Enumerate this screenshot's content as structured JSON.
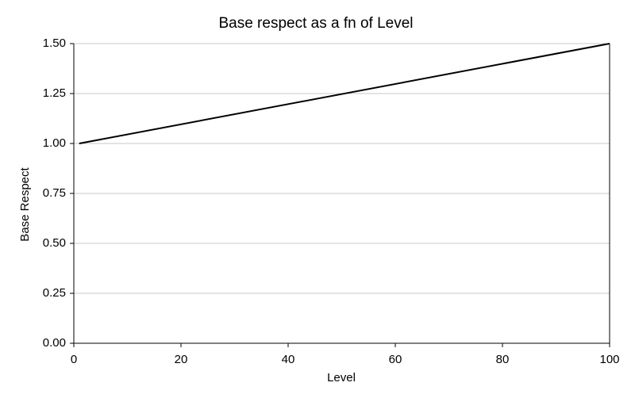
{
  "chart_data": {
    "type": "line",
    "title": "Base respect as a fn of Level",
    "x_label": "Level",
    "y_label": "Base Respect",
    "x": [
      1,
      100
    ],
    "series": [
      {
        "name": "Base respect",
        "color": "#000000",
        "values": [
          1.0,
          1.5
        ]
      }
    ],
    "xlim": [
      0,
      100
    ],
    "xticks": [
      0,
      20,
      40,
      60,
      80,
      100
    ],
    "ylim": [
      0,
      1.5
    ],
    "yticks": [
      {
        "value": 0,
        "label": "0.00"
      },
      {
        "value": 0.25,
        "label": "0.25"
      },
      {
        "value": 0.5,
        "label": "0.50"
      },
      {
        "value": 0.75,
        "label": "0.75"
      },
      {
        "value": 1,
        "label": "1.00"
      },
      {
        "value": 1.25,
        "label": "1.25"
      },
      {
        "value": 1.5,
        "label": "1.50"
      }
    ],
    "grid": true
  }
}
